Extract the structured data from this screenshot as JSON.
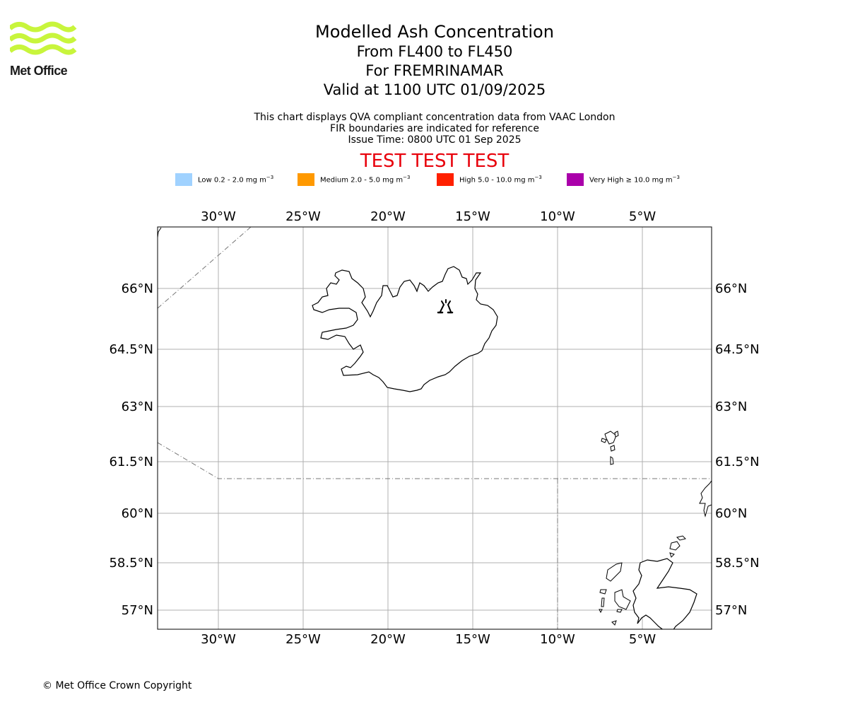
{
  "logo": {
    "name": "Met Office",
    "brand_color": "#c8f53c"
  },
  "title": {
    "main": "Modelled Ash Concentration",
    "levels": "From FL400 to FL450",
    "region": "For FREMRINAMAR",
    "valid": "Valid at 1100 UTC 01/09/2025"
  },
  "notes": {
    "line1": "This chart displays QVA compliant concentration data from VAAC London",
    "line2": "FIR boundaries are indicated for reference",
    "line3": "Issue Time: 0800 UTC 01 Sep 2025"
  },
  "test_banner": {
    "text": "TEST TEST TEST",
    "color": "#e8000b"
  },
  "legend": [
    {
      "label": "Low 0.2 - 2.0 mg m",
      "unit_exp": "−3",
      "color": "#a0d2ff"
    },
    {
      "label": "Medium 2.0 - 5.0 mg m",
      "unit_exp": "−3",
      "color": "#ff9900"
    },
    {
      "label": "High 5.0 - 10.0 mg m",
      "unit_exp": "−3",
      "color": "#ff2000"
    },
    {
      "label": "Very High  ≥  10.0 mg m",
      "unit_exp": "−3",
      "color": "#aa00aa"
    }
  ],
  "map": {
    "lon_ticks": [
      "30°W",
      "25°W",
      "20°W",
      "15°W",
      "10°W",
      "5°W"
    ],
    "lat_ticks": [
      "66°N",
      "64.5°N",
      "63°N",
      "61.5°N",
      "60°N",
      "58.5°N",
      "57°N"
    ],
    "lon_range": [
      -33.6,
      -0.8
    ],
    "lat_range": [
      56.5,
      66.8
    ],
    "grid": true,
    "volcano_icon": "volcano-icon",
    "features": [
      "Iceland",
      "Faroe Islands",
      "Shetland",
      "Scotland"
    ]
  },
  "copyright": "© Met Office Crown Copyright"
}
